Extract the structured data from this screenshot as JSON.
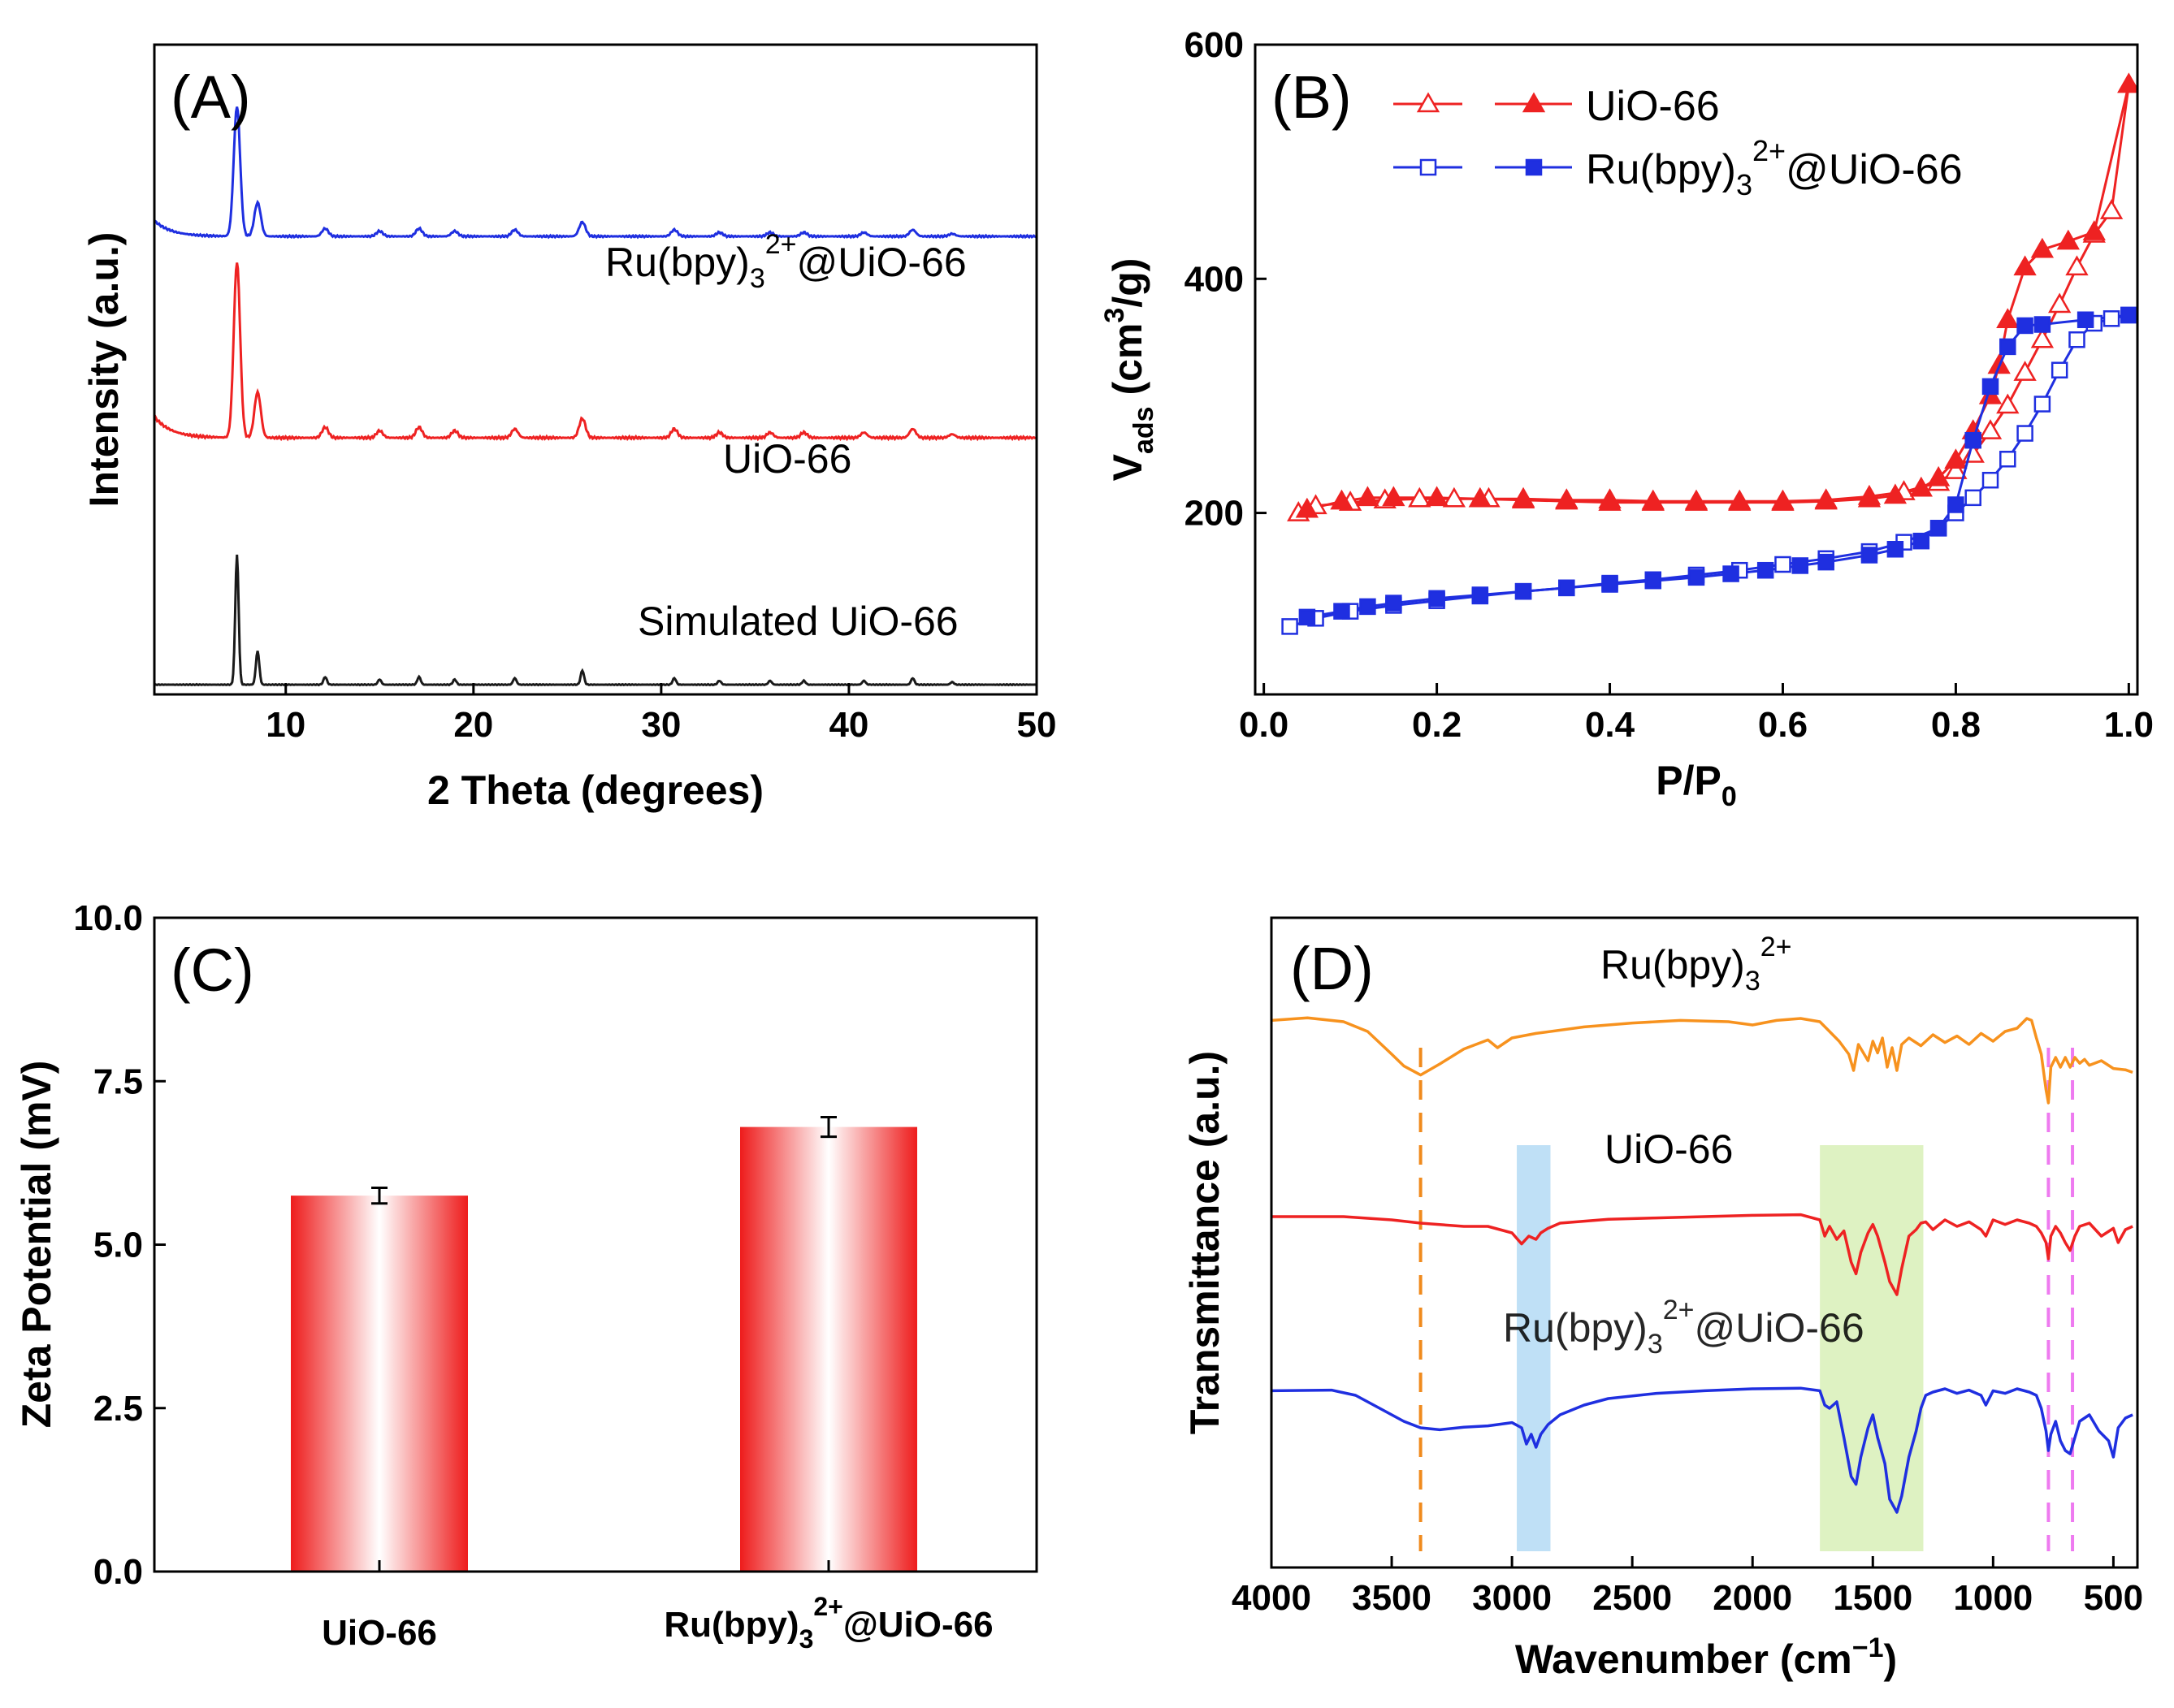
{
  "chart_data": [
    {
      "panel": "A",
      "type": "line",
      "panel_label": "(A)",
      "xlabel": "2 Theta (degrees)",
      "ylabel": "Intensity (a.u.)",
      "xlim": [
        3,
        50
      ],
      "ylim": [
        0,
        100
      ],
      "xticks": [
        10,
        20,
        30,
        40,
        50
      ],
      "peaks": {
        "positions": [
          7.4,
          8.5,
          12.1,
          15.0,
          17.1,
          19.0,
          22.2,
          25.8,
          30.7,
          33.1,
          35.8,
          37.6,
          40.8,
          43.4,
          45.5
        ],
        "relative_heights": [
          1.0,
          0.26,
          0.06,
          0.04,
          0.06,
          0.04,
          0.05,
          0.11,
          0.05,
          0.03,
          0.03,
          0.03,
          0.03,
          0.05,
          0.02
        ]
      },
      "series": [
        {
          "name": "Ru(bpy)3 2+ @UiO-66",
          "label_base": "Ru(bpy)",
          "label_sub": "3",
          "label_sup": "2+",
          "label_tail": "@UiO-66",
          "color": "#1f2fe0",
          "baseline": 70.5,
          "scale": 20
        },
        {
          "name": "UiO-66",
          "label_base": "UiO-66",
          "color": "#ee2222",
          "baseline": 39.5,
          "scale": 27
        },
        {
          "name": "Simulated UiO-66",
          "label_base": "Simulated UiO-66",
          "color": "#1a1a1a",
          "baseline": 1.5,
          "scale": 20
        }
      ]
    },
    {
      "panel": "B",
      "type": "line",
      "panel_label": "(B)",
      "xlabel_base": "P/P",
      "xlabel_sub": "0",
      "ylabel_base": "V",
      "ylabel_sub": "ads",
      "ylabel_mid": " (cm",
      "ylabel_sup": "3",
      "ylabel_tail": "/g)",
      "xlim": [
        -0.01,
        1.01
      ],
      "ylim": [
        45,
        600
      ],
      "xticks": [
        0.0,
        0.2,
        0.4,
        0.6,
        0.8,
        1.0
      ],
      "xtick_labels": [
        "0.0",
        "0.2",
        "0.4",
        "0.6",
        "0.8",
        "1.0"
      ],
      "yticks": [
        200,
        400,
        600
      ],
      "series": [
        {
          "name": "UiO-66",
          "legend_base": "UiO-66",
          "color": "#ee2222",
          "marker": "triangle",
          "adsorption": {
            "x": [
              0.04,
              0.06,
              0.1,
              0.14,
              0.18,
              0.22,
              0.26,
              0.3,
              0.35,
              0.4,
              0.45,
              0.5,
              0.55,
              0.6,
              0.65,
              0.7,
              0.74,
              0.78,
              0.8,
              0.82,
              0.84,
              0.86,
              0.88,
              0.9,
              0.92,
              0.94,
              0.96,
              0.98,
              1.0
            ],
            "y": [
              200,
              206,
              209,
              211,
              212,
              212,
              212,
              212,
              211,
              211,
              210,
              210,
              210,
              210,
              211,
              214,
              218,
              226,
              236,
              250,
              270,
              292,
              320,
              348,
              378,
              410,
              438,
              458,
              566
            ]
          },
          "desorption": {
            "x": [
              1.0,
              0.96,
              0.93,
              0.9,
              0.88,
              0.86,
              0.85,
              0.84,
              0.82,
              0.8,
              0.78,
              0.76,
              0.73,
              0.7,
              0.65,
              0.6,
              0.55,
              0.5,
              0.45,
              0.4,
              0.35,
              0.3,
              0.25,
              0.2,
              0.15,
              0.12,
              0.09,
              0.05
            ],
            "y": [
              566,
              440,
              432,
              425,
              410,
              365,
              326,
              300,
              270,
              245,
              230,
              221,
              215,
              212,
              210,
              209,
              209,
              209,
              209,
              209,
              210,
              211,
              212,
              213,
              213,
              213,
              210,
              203
            ]
          }
        },
        {
          "name": "Ru(bpy)3 2+ @UiO-66",
          "legend_base": "Ru(bpy)",
          "legend_sub": "3",
          "legend_sup": "2+",
          "legend_tail": "@UiO-66",
          "color": "#1f2fe0",
          "marker": "square",
          "adsorption": {
            "x": [
              0.03,
              0.06,
              0.1,
              0.15,
              0.2,
              0.25,
              0.3,
              0.35,
              0.4,
              0.45,
              0.5,
              0.55,
              0.6,
              0.65,
              0.7,
              0.74,
              0.78,
              0.8,
              0.82,
              0.84,
              0.86,
              0.88,
              0.9,
              0.92,
              0.94,
              0.96,
              0.98,
              1.0
            ],
            "y": [
              103,
              110,
              116,
              121,
              125,
              129,
              133,
              136,
              140,
              143,
              147,
              151,
              156,
              161,
              167,
              175,
              187,
              200,
              213,
              228,
              246,
              268,
              293,
              322,
              348,
              362,
              366,
              369
            ]
          },
          "desorption": {
            "x": [
              1.0,
              0.95,
              0.9,
              0.88,
              0.86,
              0.84,
              0.82,
              0.8,
              0.78,
              0.76,
              0.73,
              0.7,
              0.65,
              0.62,
              0.58,
              0.54,
              0.5,
              0.45,
              0.4,
              0.35,
              0.3,
              0.25,
              0.2,
              0.15,
              0.12,
              0.09,
              0.05
            ],
            "y": [
              369,
              365,
              361,
              360,
              342,
              308,
              262,
              207,
              187,
              176,
              169,
              164,
              158,
              155,
              151,
              148,
              145,
              142,
              139,
              136,
              133,
              130,
              127,
              123,
              120,
              116,
              111
            ]
          }
        }
      ]
    },
    {
      "panel": "C",
      "type": "bar",
      "panel_label": "(C)",
      "ylabel": "Zeta Potential (mV)",
      "categories": [
        "UiO-66",
        "Ru(bpy)3 2+ @UiO-66"
      ],
      "category_labels": [
        {
          "base": "UiO-66"
        },
        {
          "base": "Ru(bpy)",
          "sub": "3",
          "sup": "2+",
          "tail": "@UiO-66"
        }
      ],
      "values": [
        5.75,
        6.8
      ],
      "errors": [
        0.12,
        0.15
      ],
      "ylim": [
        0,
        10
      ],
      "yticks": [
        0.0,
        2.5,
        5.0,
        7.5,
        10.0
      ],
      "ytick_labels": [
        "0.0",
        "2.5",
        "5.0",
        "7.5",
        "10.0"
      ],
      "bar_color": "#ee1c1c"
    },
    {
      "panel": "D",
      "type": "line",
      "panel_label": "(D)",
      "xlabel_base": "Wavenumber (cm",
      "xlabel_sup": "−1",
      "xlabel_tail": ")",
      "ylabel": "Transmittance (a.u.)",
      "xlim": [
        4000,
        400
      ],
      "ylim": [
        0,
        100
      ],
      "xticks": [
        4000,
        3500,
        3000,
        2500,
        2000,
        1500,
        1000,
        500
      ],
      "highlight_bands": [
        {
          "x0": 2980,
          "x1": 2840,
          "color": "#bfe0f6"
        },
        {
          "x0": 1720,
          "x1": 1290,
          "color": "#def2c2"
        }
      ],
      "reference_lines": [
        {
          "x": 3380,
          "color": "#f08a1c"
        },
        {
          "x": 770,
          "color": "#ee7af0"
        },
        {
          "x": 670,
          "color": "#ee7af0"
        }
      ],
      "series": [
        {
          "name": "Ru(bpy)3 2+",
          "label_base": "Ru(bpy)",
          "label_sub": "3",
          "label_sup": "2+",
          "color": "#f7921e",
          "baseline": 84,
          "x": [
            4000,
            3850,
            3700,
            3600,
            3500,
            3450,
            3380,
            3300,
            3200,
            3100,
            3060,
            3000,
            2900,
            2700,
            2500,
            2300,
            2100,
            2000,
            1900,
            1800,
            1720,
            1680,
            1640,
            1600,
            1580,
            1560,
            1520,
            1500,
            1480,
            1460,
            1440,
            1420,
            1400,
            1380,
            1350,
            1300,
            1250,
            1200,
            1150,
            1100,
            1050,
            1000,
            950,
            900,
            860,
            840,
            820,
            800,
            780,
            770,
            760,
            740,
            720,
            700,
            680,
            660,
            640,
            620,
            600,
            550,
            500,
            450,
            420
          ],
          "y": [
            84.2,
            84.6,
            84.0,
            82.5,
            79.0,
            77.2,
            75.8,
            77.5,
            79.8,
            81.2,
            80.0,
            81.5,
            82.2,
            83.2,
            83.8,
            84.2,
            84.0,
            83.5,
            84.2,
            84.5,
            84.0,
            82.5,
            81.0,
            79.0,
            76.5,
            80.5,
            78.0,
            81.0,
            79.2,
            81.5,
            77.0,
            80.0,
            76.5,
            80.5,
            81.5,
            80.3,
            82.0,
            80.8,
            81.8,
            80.5,
            82.2,
            81.0,
            82.5,
            83.0,
            84.5,
            84.2,
            81.5,
            79.0,
            73.5,
            71.5,
            77.0,
            78.5,
            77.0,
            78.5,
            77.0,
            78.5,
            77.6,
            78.2,
            77.3,
            78.0,
            76.8,
            76.6,
            76.2
          ]
        },
        {
          "name": "UiO-66",
          "label_base": "UiO-66",
          "color": "#ee2222",
          "baseline": 54,
          "x": [
            4000,
            3700,
            3500,
            3380,
            3200,
            3100,
            3000,
            2960,
            2930,
            2900,
            2880,
            2850,
            2800,
            2600,
            2400,
            2200,
            2000,
            1800,
            1720,
            1700,
            1680,
            1650,
            1620,
            1590,
            1570,
            1550,
            1520,
            1500,
            1480,
            1450,
            1430,
            1400,
            1380,
            1350,
            1320,
            1300,
            1280,
            1250,
            1200,
            1150,
            1100,
            1050,
            1030,
            1000,
            950,
            900,
            850,
            820,
            800,
            780,
            770,
            760,
            740,
            720,
            700,
            680,
            660,
            640,
            600,
            550,
            500,
            480,
            450,
            420
          ],
          "y": [
            54.0,
            54.0,
            53.5,
            53.0,
            52.5,
            52.5,
            51.5,
            49.8,
            51.0,
            50.5,
            51.5,
            52.2,
            53.0,
            53.6,
            53.8,
            54.0,
            54.2,
            54.3,
            53.5,
            51.0,
            52.5,
            50.5,
            51.8,
            47.0,
            45.2,
            48.5,
            51.5,
            52.8,
            51.0,
            47.0,
            44.0,
            42.0,
            46.0,
            51.0,
            52.0,
            53.0,
            53.2,
            52.0,
            53.5,
            52.5,
            53.2,
            52.0,
            51.0,
            53.5,
            52.8,
            53.5,
            53.0,
            52.5,
            51.5,
            50.0,
            47.5,
            51.0,
            52.5,
            51.5,
            50.0,
            48.8,
            51.0,
            52.5,
            53.0,
            51.0,
            52.2,
            50.0,
            52.0,
            52.5
          ]
        },
        {
          "name": "Ru(bpy)3 2+ @UiO-66",
          "label_base": "Ru(bpy)",
          "label_sub": "3",
          "label_sup": "2+",
          "label_tail": "@UiO-66",
          "color": "#1f2fe0",
          "baseline": 27,
          "x": [
            4000,
            3750,
            3650,
            3550,
            3450,
            3380,
            3300,
            3200,
            3100,
            3000,
            2960,
            2940,
            2920,
            2900,
            2880,
            2850,
            2800,
            2700,
            2600,
            2400,
            2200,
            2000,
            1800,
            1720,
            1700,
            1680,
            1650,
            1620,
            1590,
            1570,
            1550,
            1520,
            1500,
            1480,
            1450,
            1430,
            1400,
            1380,
            1350,
            1320,
            1300,
            1280,
            1250,
            1200,
            1150,
            1100,
            1050,
            1030,
            1000,
            950,
            900,
            850,
            820,
            800,
            780,
            770,
            760,
            740,
            720,
            700,
            680,
            660,
            640,
            600,
            560,
            520,
            500,
            480,
            450,
            420
          ],
          "y": [
            27.2,
            27.3,
            26.5,
            24.5,
            22.5,
            21.5,
            21.2,
            21.6,
            21.8,
            22.3,
            21.5,
            19.0,
            20.5,
            18.5,
            20.5,
            22.0,
            23.5,
            25.0,
            26.0,
            26.8,
            27.2,
            27.5,
            27.6,
            27.2,
            25.0,
            24.5,
            25.5,
            20.0,
            14.0,
            12.8,
            17.0,
            21.5,
            23.5,
            20.0,
            16.0,
            10.5,
            8.5,
            11.0,
            17.0,
            21.0,
            24.5,
            26.5,
            27.0,
            27.5,
            26.8,
            27.3,
            26.5,
            25.0,
            27.2,
            26.8,
            27.5,
            27.0,
            26.5,
            24.5,
            21.0,
            18.0,
            20.5,
            22.5,
            19.5,
            18.0,
            17.5,
            20.0,
            22.5,
            23.5,
            21.0,
            19.5,
            17.0,
            21.5,
            23.0,
            23.5
          ]
        }
      ]
    }
  ]
}
